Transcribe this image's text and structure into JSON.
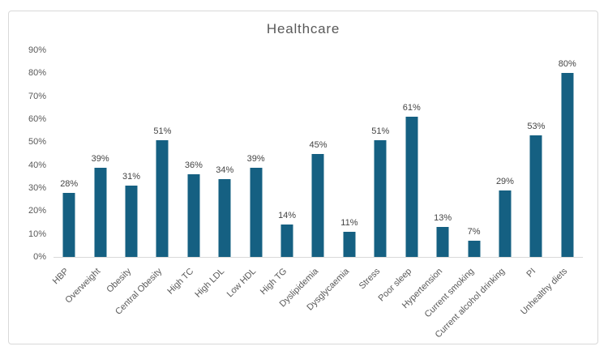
{
  "chart_data": {
    "type": "bar",
    "title": "Healthcare",
    "categories": [
      "HBP",
      "Overweight",
      "Obesity",
      "Central Obesity",
      "High TC",
      "High LDL",
      "Low HDL",
      "High TG",
      "Dyslipidemia",
      "Dysglycaemia",
      "Stress",
      "Poor sleep",
      "Hypertension",
      "Current smoking",
      "Current alcohol drinking",
      "PI",
      "Unhealthy diets"
    ],
    "values": [
      28,
      39,
      31,
      51,
      36,
      34,
      39,
      14,
      45,
      11,
      51,
      61,
      13,
      7,
      29,
      53,
      80
    ],
    "data_labels": [
      "28%",
      "39%",
      "31%",
      "51%",
      "36%",
      "34%",
      "39%",
      "14%",
      "45%",
      "11%",
      "51%",
      "61%",
      "13%",
      "7%",
      "29%",
      "53%",
      "80%"
    ],
    "xlabel": "",
    "ylabel": "",
    "ylim": [
      0,
      90
    ],
    "ytick_labels": [
      "0%",
      "10%",
      "20%",
      "30%",
      "40%",
      "50%",
      "60%",
      "70%",
      "80%",
      "90%"
    ],
    "grid": false,
    "legend": false,
    "legend_position": "none"
  },
  "colors": {
    "bar": "#156082",
    "title_text": "#595959",
    "axis_text": "#595959",
    "data_label_text": "#444444",
    "axis_line": "#d9d9d9",
    "frame_border": "#d9d9d9",
    "background": "#ffffff"
  }
}
